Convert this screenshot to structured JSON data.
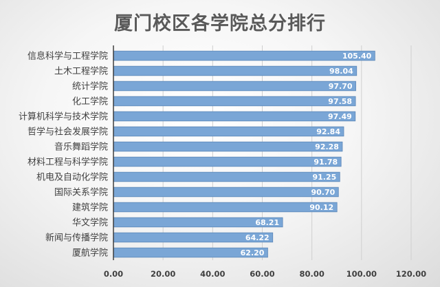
{
  "chart_data": {
    "type": "bar",
    "orientation": "horizontal",
    "title": "厦门校区各学院总分排行",
    "xlabel": "",
    "ylabel": "",
    "categories": [
      "信息科学与工程学院",
      "土木工程学院",
      "统计学院",
      "化工学院",
      "计算机科学与技术学院",
      "哲学与社会发展学院",
      "音乐舞蹈学院",
      "材料工程与科学学院",
      "机电及自动化学院",
      "国际关系学院",
      "建筑学院",
      "华文学院",
      "新闻与传播学院",
      "厦航学院"
    ],
    "values": [
      105.4,
      98.04,
      97.7,
      97.58,
      97.49,
      92.84,
      92.28,
      91.78,
      91.25,
      90.7,
      90.12,
      68.21,
      64.22,
      62.2
    ],
    "value_labels": [
      "105.40",
      "98.04",
      "97.70",
      "97.58",
      "97.49",
      "92.84",
      "92.28",
      "91.78",
      "91.25",
      "90.70",
      "90.12",
      "68.21",
      "64.22",
      "62.20"
    ],
    "xlim": [
      0,
      120
    ],
    "ticks": [
      0,
      20,
      40,
      60,
      80,
      100,
      120
    ],
    "tick_labels": [
      "0.00",
      "20.00",
      "40.00",
      "60.00",
      "80.00",
      "100.00",
      "120.00"
    ],
    "grid": true,
    "legend": "none",
    "bar_color": "#7aa6d6",
    "bar_edge_color": "#5b86b8"
  }
}
